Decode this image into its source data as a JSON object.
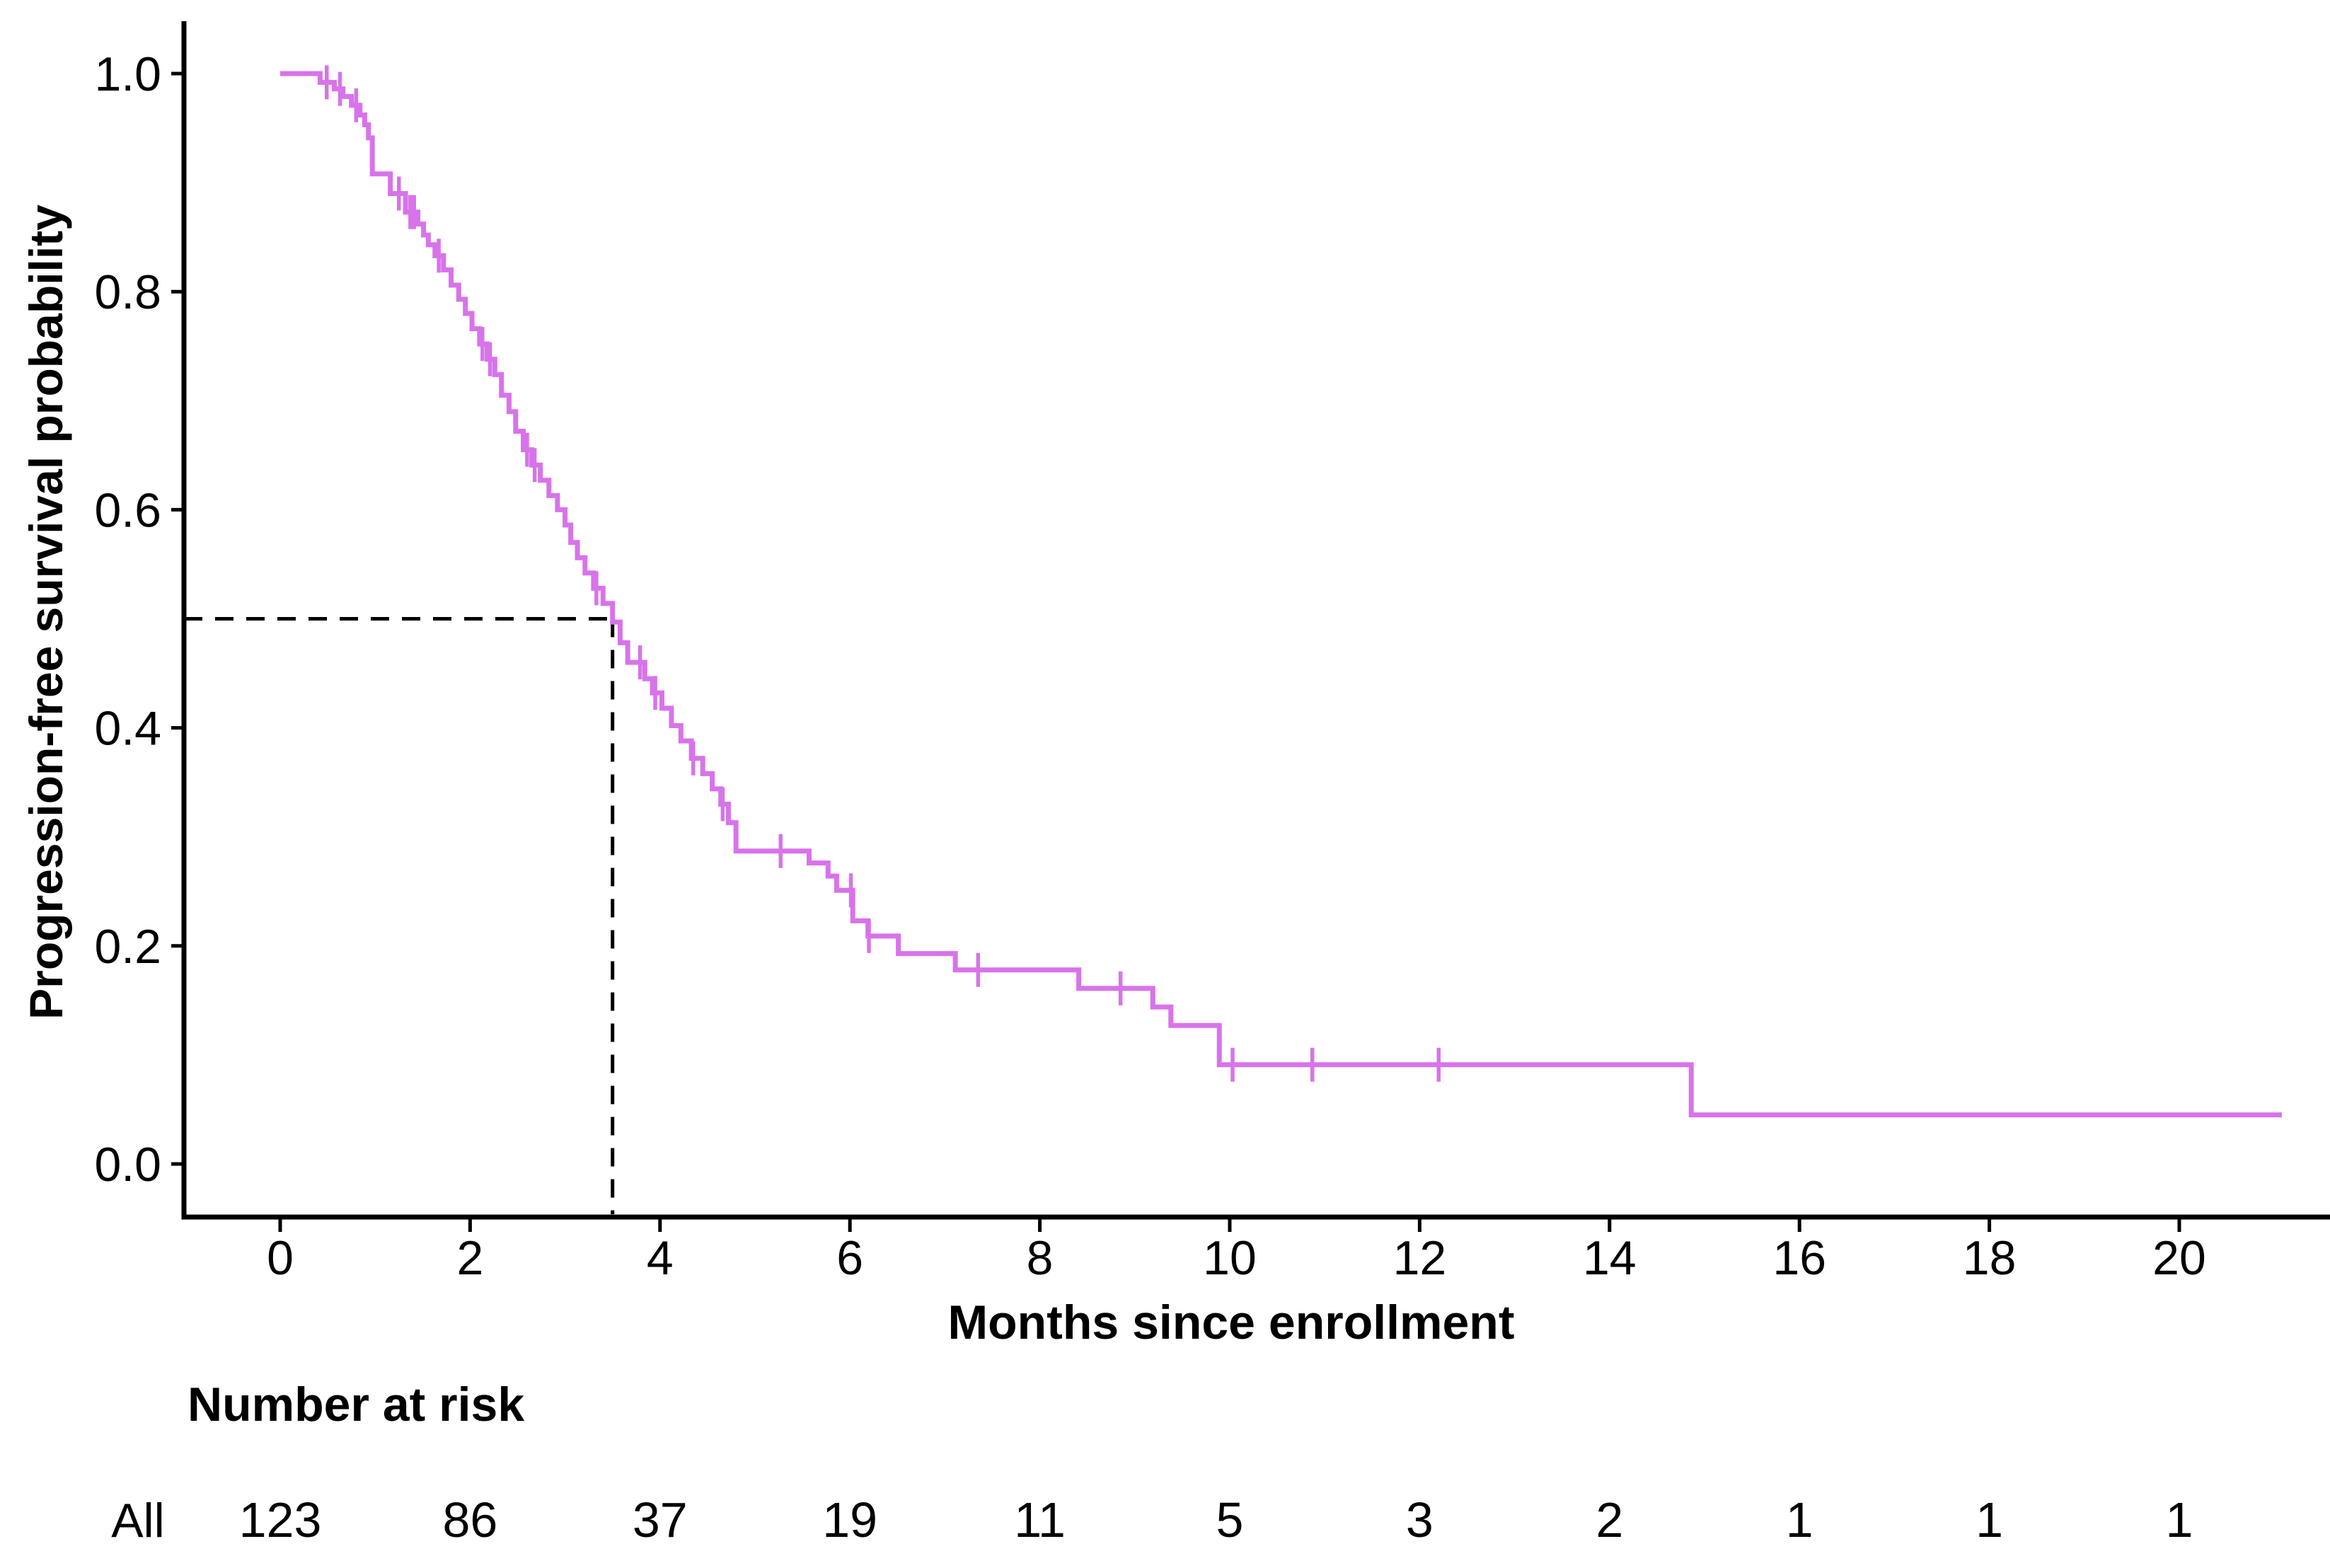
{
  "chart_data": {
    "type": "line",
    "subtype": "kaplan-meier-step-curve",
    "title": "",
    "xlabel": "Months since enrollment",
    "ylabel": "Progression-free survival probability",
    "xlim": [
      0,
      21
    ],
    "ylim": [
      0.0,
      1.0
    ],
    "grid": "off",
    "legend": "none",
    "x_ticks": [
      0,
      2,
      4,
      6,
      8,
      10,
      12,
      14,
      16,
      18,
      20
    ],
    "y_ticks": [
      {
        "value": 1.0,
        "label": "1.0"
      },
      {
        "value": 0.8,
        "label": "0.8"
      },
      {
        "value": 0.6,
        "label": "0.6"
      },
      {
        "value": 0.4,
        "label": "0.4"
      },
      {
        "value": 0.2,
        "label": "0.2"
      },
      {
        "value": 0.0,
        "label": "0.0"
      }
    ],
    "median": {
      "time_months": 3.5,
      "probability": 0.5,
      "style": "dashed-reference-lines"
    },
    "series": [
      {
        "name": "All",
        "color": "#d873ea",
        "start": [
          0,
          1.0
        ],
        "end_time": 21.08,
        "steps": [
          [
            0.42,
            0.992
          ],
          [
            0.57,
            0.986
          ],
          [
            0.66,
            0.979
          ],
          [
            0.75,
            0.971
          ],
          [
            0.84,
            0.962
          ],
          [
            0.89,
            0.953
          ],
          [
            0.93,
            0.941
          ],
          [
            0.97,
            0.908
          ],
          [
            1.16,
            0.89
          ],
          [
            1.32,
            0.873
          ],
          [
            1.45,
            0.862
          ],
          [
            1.51,
            0.852
          ],
          [
            1.56,
            0.843
          ],
          [
            1.63,
            0.833
          ],
          [
            1.72,
            0.82
          ],
          [
            1.8,
            0.806
          ],
          [
            1.88,
            0.793
          ],
          [
            1.95,
            0.78
          ],
          [
            2.02,
            0.766
          ],
          [
            2.1,
            0.752
          ],
          [
            2.18,
            0.738
          ],
          [
            2.26,
            0.724
          ],
          [
            2.33,
            0.705
          ],
          [
            2.41,
            0.69
          ],
          [
            2.48,
            0.672
          ],
          [
            2.56,
            0.655
          ],
          [
            2.65,
            0.641
          ],
          [
            2.74,
            0.627
          ],
          [
            2.83,
            0.613
          ],
          [
            2.92,
            0.6
          ],
          [
            3.0,
            0.586
          ],
          [
            3.06,
            0.57
          ],
          [
            3.13,
            0.556
          ],
          [
            3.21,
            0.542
          ],
          [
            3.3,
            0.528
          ],
          [
            3.4,
            0.514
          ],
          [
            3.5,
            0.497
          ],
          [
            3.58,
            0.478
          ],
          [
            3.66,
            0.46
          ],
          [
            3.84,
            0.445
          ],
          [
            3.92,
            0.432
          ],
          [
            4.02,
            0.418
          ],
          [
            4.12,
            0.402
          ],
          [
            4.22,
            0.388
          ],
          [
            4.33,
            0.372
          ],
          [
            4.45,
            0.358
          ],
          [
            4.55,
            0.344
          ],
          [
            4.64,
            0.33
          ],
          [
            4.72,
            0.313
          ],
          [
            4.8,
            0.287
          ],
          [
            5.57,
            0.276
          ],
          [
            5.77,
            0.264
          ],
          [
            5.86,
            0.251
          ],
          [
            6.03,
            0.223
          ],
          [
            6.19,
            0.209
          ],
          [
            6.51,
            0.193
          ],
          [
            7.11,
            0.178
          ],
          [
            8.41,
            0.161
          ],
          [
            9.19,
            0.144
          ],
          [
            9.38,
            0.127
          ],
          [
            9.89,
            0.091
          ],
          [
            14.86,
            0.045
          ]
        ],
        "censor_marks": [
          [
            0.49,
            0.992
          ],
          [
            0.63,
            0.986
          ],
          [
            0.8,
            0.971
          ],
          [
            1.25,
            0.89
          ],
          [
            1.37,
            0.873
          ],
          [
            1.41,
            0.873
          ],
          [
            1.67,
            0.833
          ],
          [
            2.13,
            0.752
          ],
          [
            2.21,
            0.738
          ],
          [
            2.6,
            0.655
          ],
          [
            2.68,
            0.641
          ],
          [
            3.33,
            0.528
          ],
          [
            3.79,
            0.46
          ],
          [
            3.95,
            0.432
          ],
          [
            4.35,
            0.372
          ],
          [
            4.66,
            0.33
          ],
          [
            5.27,
            0.287
          ],
          [
            6.01,
            0.251
          ],
          [
            6.2,
            0.209
          ],
          [
            7.35,
            0.178
          ],
          [
            8.85,
            0.161
          ],
          [
            10.03,
            0.091
          ],
          [
            10.87,
            0.091
          ],
          [
            12.2,
            0.091
          ]
        ]
      }
    ],
    "risk_table": {
      "title": "Number at risk",
      "times": [
        0,
        2,
        4,
        6,
        8,
        10,
        12,
        14,
        16,
        18,
        20
      ],
      "rows": [
        {
          "label": "All",
          "color": "#d873ea",
          "values": [
            123,
            86,
            37,
            19,
            11,
            5,
            3,
            2,
            1,
            1,
            1
          ]
        }
      ]
    },
    "colors": {
      "curve": "#d873ea",
      "axis": "#000000",
      "text": "#000000",
      "reference_line": "#000000"
    }
  }
}
